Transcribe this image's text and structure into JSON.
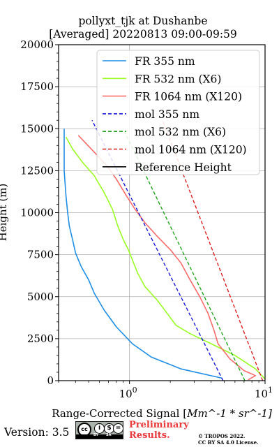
{
  "chart_data": {
    "type": "line",
    "title": "pollyxt_tjk at Dushanbe",
    "subtitle": "[Averaged] 20220813 09:00-09:59",
    "xlabel_prefix": "Range-Corrected Signal [",
    "xlabel_math": "Mm^-1 * sr^-1]",
    "ylabel": "Height (m)",
    "xscale": "log",
    "xlim": [
      0.3,
      10
    ],
    "ylim": [
      0,
      20000
    ],
    "x_tick_labels": [
      "10^0",
      "10^1"
    ],
    "y_ticks": [
      0,
      2500,
      5000,
      7500,
      10000,
      12500,
      15000,
      17500,
      20000
    ],
    "grid": true,
    "legend_placement": "upper right",
    "series": [
      {
        "name": "FR 355 nm",
        "color": "#1f8ee6",
        "style": "solid",
        "x": [
          4.8,
          2.4,
          1.45,
          1.05,
          0.8,
          0.65,
          0.55,
          0.5,
          0.44,
          0.4,
          0.38,
          0.36,
          0.35,
          0.34,
          0.33,
          0.33,
          0.33
        ],
        "y": [
          150,
          700,
          1400,
          2200,
          3200,
          4200,
          5200,
          6000,
          6800,
          7600,
          8400,
          9200,
          10000,
          11000,
          12500,
          14000,
          15000
        ]
      },
      {
        "name": "FR 532 nm (X6)",
        "color": "#9afc23",
        "style": "solid",
        "x": [
          10,
          8.5,
          6.0,
          4.0,
          2.8,
          2.2,
          1.9,
          1.6,
          1.3,
          1.15,
          1.05,
          0.98,
          0.9,
          0.82,
          0.75,
          0.65,
          0.55,
          0.45,
          0.38,
          0.34
        ],
        "y": [
          100,
          700,
          1500,
          2200,
          2800,
          3300,
          4000,
          4800,
          5600,
          6400,
          7200,
          7800,
          8400,
          9200,
          10200,
          11200,
          12200,
          13000,
          13800,
          14500
        ]
      },
      {
        "name": "FR 1064 nm (X120)",
        "color": "#f96b6b",
        "style": "solid",
        "x": [
          7.5,
          8.5,
          7.0,
          5.5,
          4.5,
          4.2,
          3.8,
          3.3,
          2.8,
          2.4,
          2.0,
          1.6,
          1.3,
          1.1,
          0.95,
          0.8,
          0.68,
          0.55,
          0.42
        ],
        "y": [
          50,
          300,
          600,
          1300,
          2200,
          3000,
          4000,
          5000,
          6000,
          7000,
          7800,
          8600,
          9400,
          10200,
          11000,
          12000,
          12800,
          13600,
          14600
        ]
      },
      {
        "name": "mol 355 nm",
        "color": "#1a1ad9",
        "style": "dashed",
        "x": [
          4.9,
          0.53
        ],
        "y": [
          0,
          15500
        ]
      },
      {
        "name": "mol 532 nm (X6)",
        "color": "#22a51e",
        "style": "dashed",
        "x": [
          7.1,
          0.9
        ],
        "y": [
          0,
          15000
        ]
      },
      {
        "name": "mol 1064 nm (X120)",
        "color": "#dd1f1f",
        "style": "dashed",
        "x": [
          9.6,
          1.75
        ],
        "y": [
          0,
          15500
        ]
      },
      {
        "name": "Reference Height",
        "color": "#000000",
        "style": "solid",
        "x": [],
        "y": []
      }
    ]
  },
  "footer": {
    "version": "Version: 3.5",
    "cc_logo": "cc",
    "cc_icons": [
      "i",
      "$",
      "="
    ],
    "cc_strip_left": "BY",
    "cc_strip_right": "SA",
    "preliminary": "Preliminary",
    "results": "Results.",
    "copyright_line1": "© TROPOS 2022.",
    "copyright_line2": "CC BY SA 4.0 License."
  }
}
